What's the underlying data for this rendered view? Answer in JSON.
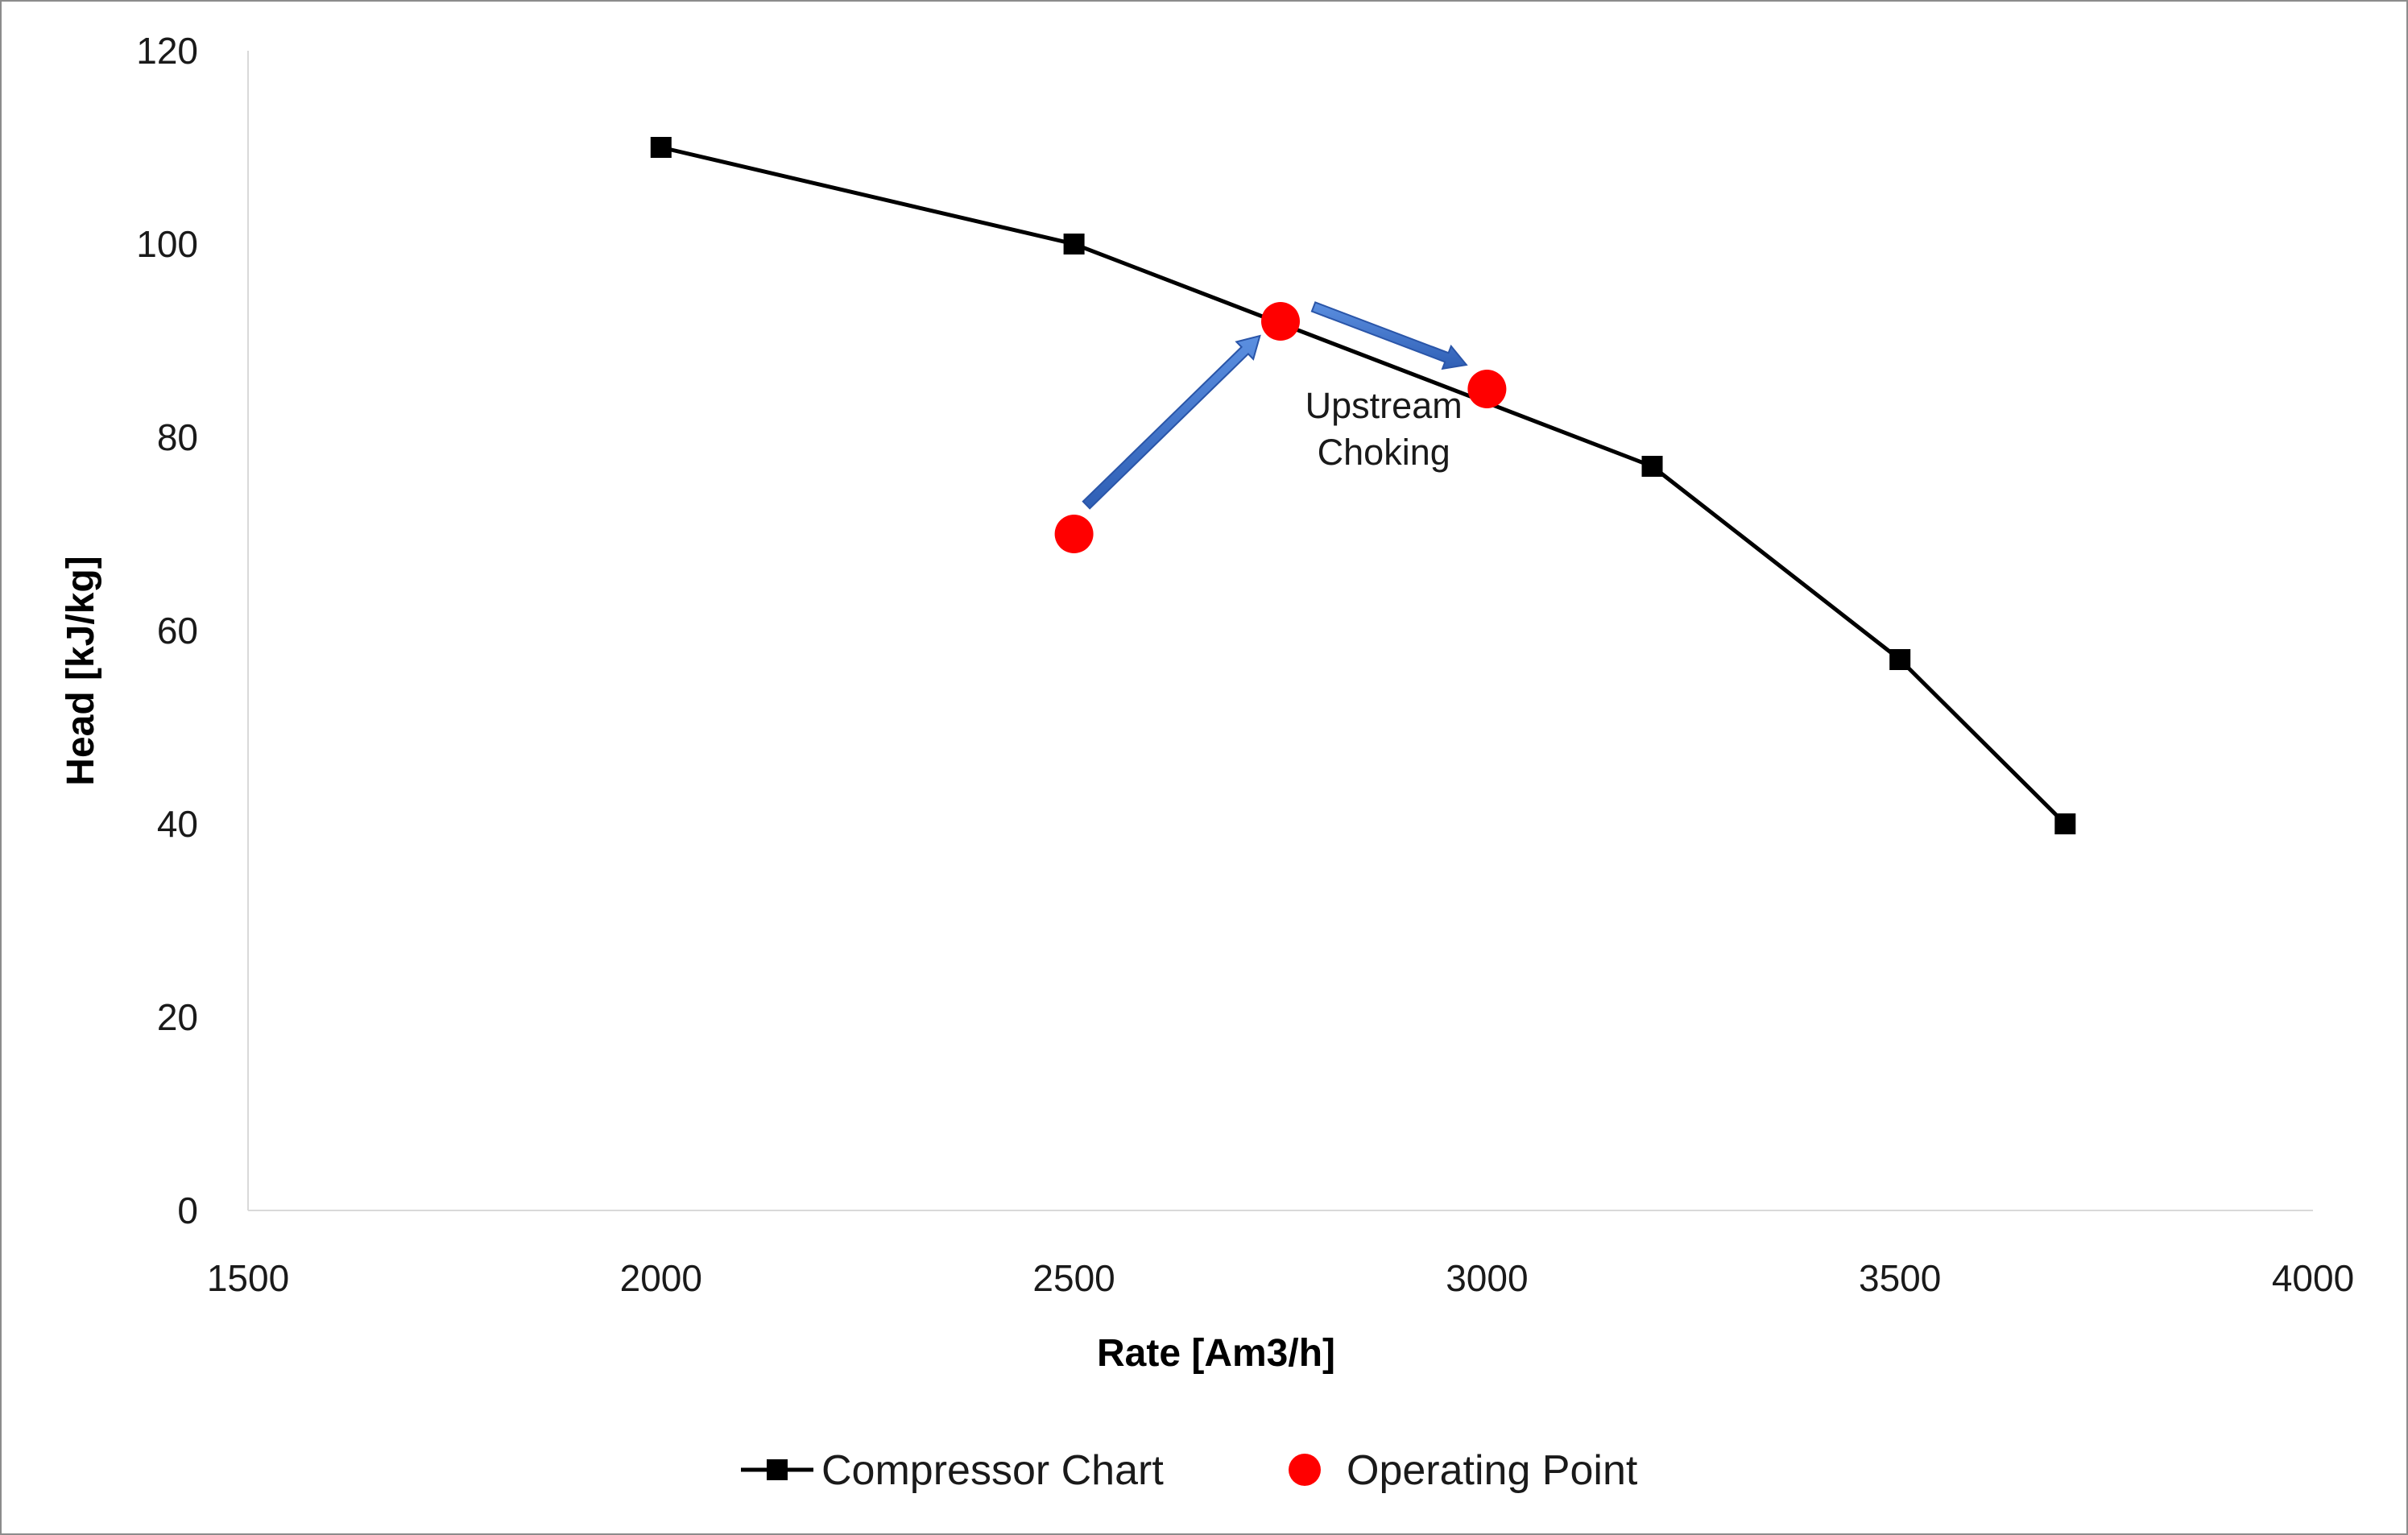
{
  "chart_data": {
    "type": "scatter",
    "xlabel": "Rate [Am3/h]",
    "ylabel": "Head [kJ/kg]",
    "xlim": [
      1500,
      4000
    ],
    "ylim": [
      0,
      120
    ],
    "x_ticks": [
      1500,
      2000,
      2500,
      3000,
      3500,
      4000
    ],
    "y_ticks": [
      0,
      20,
      40,
      60,
      80,
      100,
      120
    ],
    "grid": false,
    "legend_position": "bottom",
    "series": [
      {
        "name": "Compressor Chart",
        "style": "line-with-square-markers",
        "color": "#000000",
        "points": [
          {
            "x": 2000,
            "y": 110
          },
          {
            "x": 2500,
            "y": 100
          },
          {
            "x": 3200,
            "y": 77
          },
          {
            "x": 3500,
            "y": 57
          },
          {
            "x": 3700,
            "y": 40
          }
        ]
      },
      {
        "name": "Operating Point",
        "style": "circle-markers",
        "color": "#ff0000",
        "points": [
          {
            "x": 2500,
            "y": 70
          },
          {
            "x": 2750,
            "y": 92
          },
          {
            "x": 3000,
            "y": 85
          }
        ]
      }
    ],
    "annotations": [
      {
        "text_lines": [
          "Upstream",
          "Choking"
        ],
        "x": 2875,
        "y": 80
      }
    ],
    "arrows": [
      {
        "from": {
          "x": 2515,
          "y": 73
        },
        "to": {
          "x": 2725,
          "y": 90.5
        },
        "color": "#4472c4"
      },
      {
        "from": {
          "x": 2790,
          "y": 93.5
        },
        "to": {
          "x": 2975,
          "y": 87.5
        },
        "color": "#4472c4"
      }
    ]
  }
}
